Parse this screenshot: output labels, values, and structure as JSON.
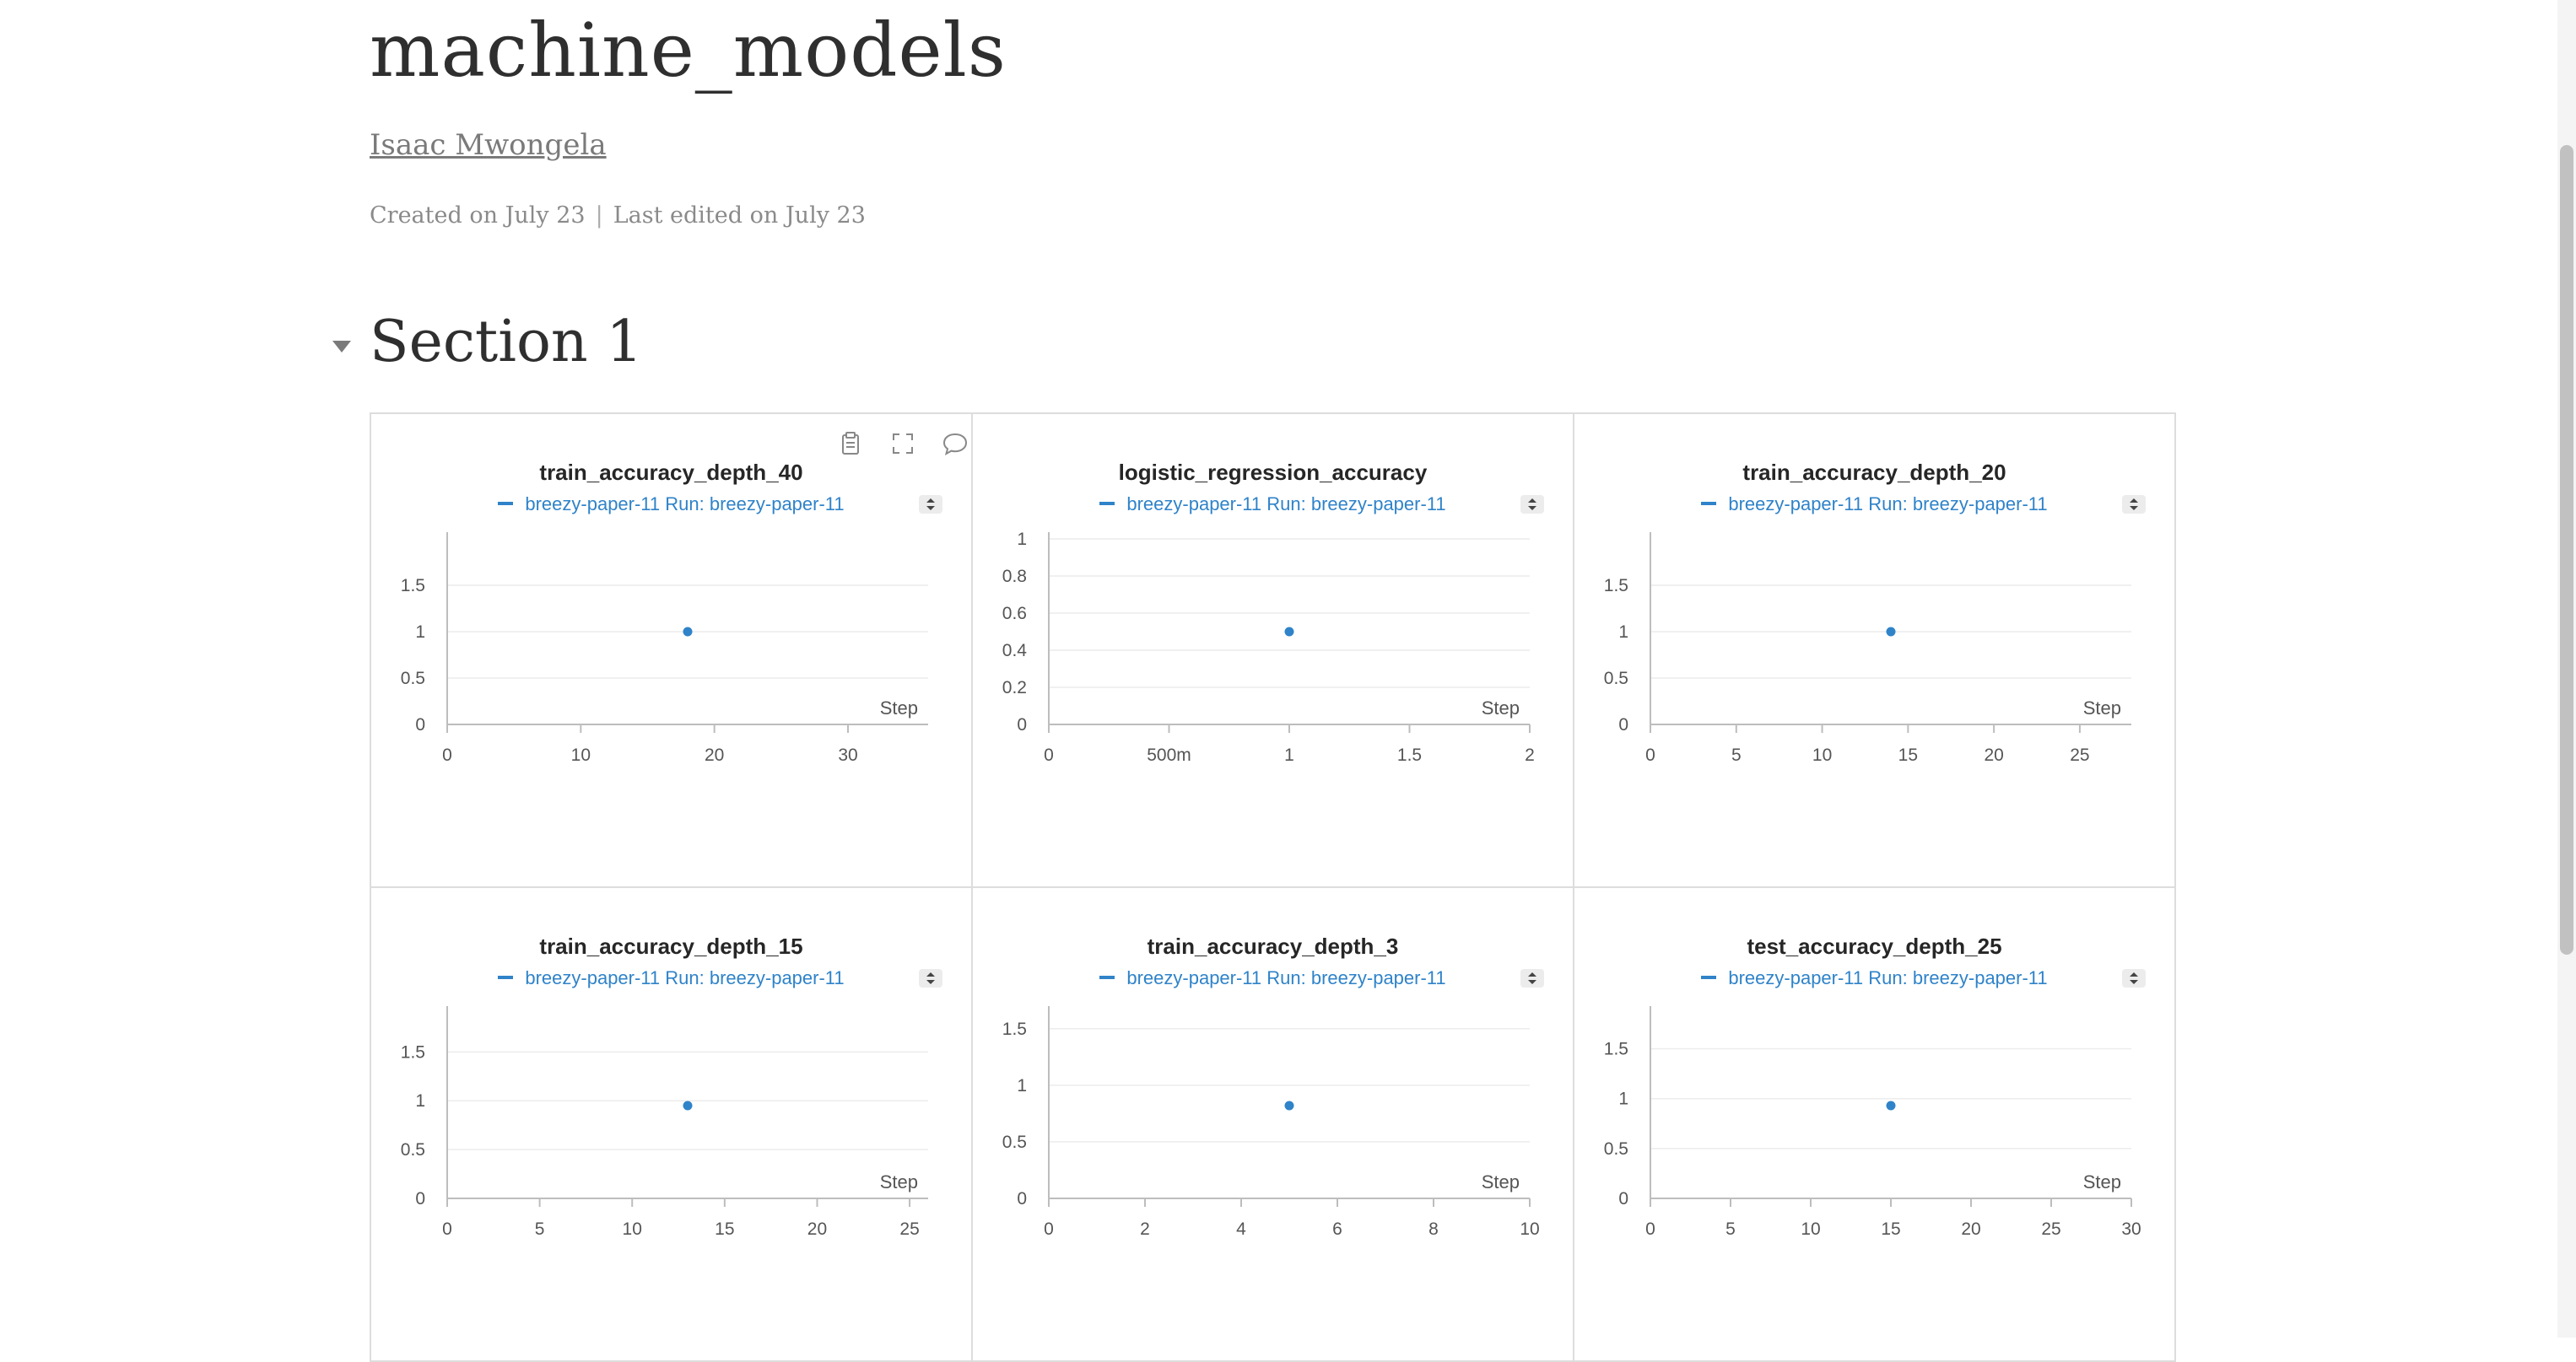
{
  "report": {
    "title": "machine_models",
    "author": "Isaac Mwongela",
    "created": "Created on July 23",
    "separator": "|",
    "edited": "Last edited on July 23"
  },
  "section": {
    "title": "Section 1",
    "collapse_icon": "caret-down-icon"
  },
  "panel_tool_icons": [
    "clipboard-icon",
    "fullscreen-icon",
    "comment-icon"
  ],
  "accent_color": "#2f83c9",
  "panels": [
    {
      "title": "train_accuracy_depth_40",
      "legend": "breezy-paper-11 Run: breezy-paper-11"
    },
    {
      "title": "logistic_regression_accuracy",
      "legend": "breezy-paper-11 Run: breezy-paper-11"
    },
    {
      "title": "train_accuracy_depth_20",
      "legend": "breezy-paper-11 Run: breezy-paper-11"
    },
    {
      "title": "train_accuracy_depth_15",
      "legend": "breezy-paper-11 Run: breezy-paper-11"
    },
    {
      "title": "train_accuracy_depth_3",
      "legend": "breezy-paper-11 Run: breezy-paper-11"
    },
    {
      "title": "test_accuracy_depth_25",
      "legend": "breezy-paper-11 Run: breezy-paper-11"
    }
  ],
  "chart_data": [
    {
      "type": "scatter",
      "title": "train_accuracy_depth_40",
      "series": [
        {
          "name": "breezy-paper-11 Run: breezy-paper-11",
          "x": [
            18
          ],
          "y": [
            1
          ]
        }
      ],
      "xlabel": "Step",
      "xlim": [
        0,
        36
      ],
      "ylim": [
        0,
        2
      ],
      "xticks": [
        {
          "v": 0,
          "l": "0"
        },
        {
          "v": 10,
          "l": "10"
        },
        {
          "v": 20,
          "l": "20"
        },
        {
          "v": 30,
          "l": "30"
        }
      ],
      "yticks": [
        {
          "v": 0,
          "l": "0"
        },
        {
          "v": 0.5,
          "l": "0.5"
        },
        {
          "v": 1,
          "l": "1"
        },
        {
          "v": 1.5,
          "l": "1.5"
        }
      ],
      "grid": true
    },
    {
      "type": "scatter",
      "title": "logistic_regression_accuracy",
      "series": [
        {
          "name": "breezy-paper-11 Run: breezy-paper-11",
          "x": [
            1
          ],
          "y": [
            0.5
          ]
        }
      ],
      "xlabel": "Step",
      "xlim": [
        0,
        2
      ],
      "ylim": [
        0,
        1
      ],
      "xticks": [
        {
          "v": 0,
          "l": "0"
        },
        {
          "v": 0.5,
          "l": "500m"
        },
        {
          "v": 1,
          "l": "1"
        },
        {
          "v": 1.5,
          "l": "1.5"
        },
        {
          "v": 2,
          "l": "2"
        }
      ],
      "yticks": [
        {
          "v": 0,
          "l": "0"
        },
        {
          "v": 0.2,
          "l": "0.2"
        },
        {
          "v": 0.4,
          "l": "0.4"
        },
        {
          "v": 0.6,
          "l": "0.6"
        },
        {
          "v": 0.8,
          "l": "0.8"
        },
        {
          "v": 1,
          "l": "1"
        }
      ],
      "grid": true
    },
    {
      "type": "scatter",
      "title": "train_accuracy_depth_20",
      "series": [
        {
          "name": "breezy-paper-11 Run: breezy-paper-11",
          "x": [
            14
          ],
          "y": [
            1
          ]
        }
      ],
      "xlabel": "Step",
      "xlim": [
        0,
        28
      ],
      "ylim": [
        0,
        2
      ],
      "xticks": [
        {
          "v": 0,
          "l": "0"
        },
        {
          "v": 5,
          "l": "5"
        },
        {
          "v": 10,
          "l": "10"
        },
        {
          "v": 15,
          "l": "15"
        },
        {
          "v": 20,
          "l": "20"
        },
        {
          "v": 25,
          "l": "25"
        }
      ],
      "yticks": [
        {
          "v": 0,
          "l": "0"
        },
        {
          "v": 0.5,
          "l": "0.5"
        },
        {
          "v": 1,
          "l": "1"
        },
        {
          "v": 1.5,
          "l": "1.5"
        }
      ],
      "grid": true
    },
    {
      "type": "scatter",
      "title": "train_accuracy_depth_15",
      "series": [
        {
          "name": "breezy-paper-11 Run: breezy-paper-11",
          "x": [
            13
          ],
          "y": [
            0.95
          ]
        }
      ],
      "xlabel": "Step",
      "xlim": [
        0,
        26
      ],
      "ylim": [
        0,
        1.9
      ],
      "xticks": [
        {
          "v": 0,
          "l": "0"
        },
        {
          "v": 5,
          "l": "5"
        },
        {
          "v": 10,
          "l": "10"
        },
        {
          "v": 15,
          "l": "15"
        },
        {
          "v": 20,
          "l": "20"
        },
        {
          "v": 25,
          "l": "25"
        }
      ],
      "yticks": [
        {
          "v": 0,
          "l": "0"
        },
        {
          "v": 0.5,
          "l": "0.5"
        },
        {
          "v": 1,
          "l": "1"
        },
        {
          "v": 1.5,
          "l": "1.5"
        }
      ],
      "grid": true
    },
    {
      "type": "scatter",
      "title": "train_accuracy_depth_3",
      "series": [
        {
          "name": "breezy-paper-11 Run: breezy-paper-11",
          "x": [
            5
          ],
          "y": [
            0.82
          ]
        }
      ],
      "xlabel": "Step",
      "xlim": [
        0,
        10
      ],
      "ylim": [
        0,
        1.64
      ],
      "xticks": [
        {
          "v": 0,
          "l": "0"
        },
        {
          "v": 2,
          "l": "2"
        },
        {
          "v": 4,
          "l": "4"
        },
        {
          "v": 6,
          "l": "6"
        },
        {
          "v": 8,
          "l": "8"
        },
        {
          "v": 10,
          "l": "10"
        }
      ],
      "yticks": [
        {
          "v": 0,
          "l": "0"
        },
        {
          "v": 0.5,
          "l": "0.5"
        },
        {
          "v": 1,
          "l": "1"
        },
        {
          "v": 1.5,
          "l": "1.5"
        }
      ],
      "grid": true
    },
    {
      "type": "scatter",
      "title": "test_accuracy_depth_25",
      "series": [
        {
          "name": "breezy-paper-11 Run: breezy-paper-11",
          "x": [
            15
          ],
          "y": [
            0.93
          ]
        }
      ],
      "xlabel": "Step",
      "xlim": [
        0,
        30
      ],
      "ylim": [
        0,
        1.86
      ],
      "xticks": [
        {
          "v": 0,
          "l": "0"
        },
        {
          "v": 5,
          "l": "5"
        },
        {
          "v": 10,
          "l": "10"
        },
        {
          "v": 15,
          "l": "15"
        },
        {
          "v": 20,
          "l": "20"
        },
        {
          "v": 25,
          "l": "25"
        },
        {
          "v": 30,
          "l": "30"
        }
      ],
      "yticks": [
        {
          "v": 0,
          "l": "0"
        },
        {
          "v": 0.5,
          "l": "0.5"
        },
        {
          "v": 1,
          "l": "1"
        },
        {
          "v": 1.5,
          "l": "1.5"
        }
      ],
      "grid": true
    }
  ]
}
